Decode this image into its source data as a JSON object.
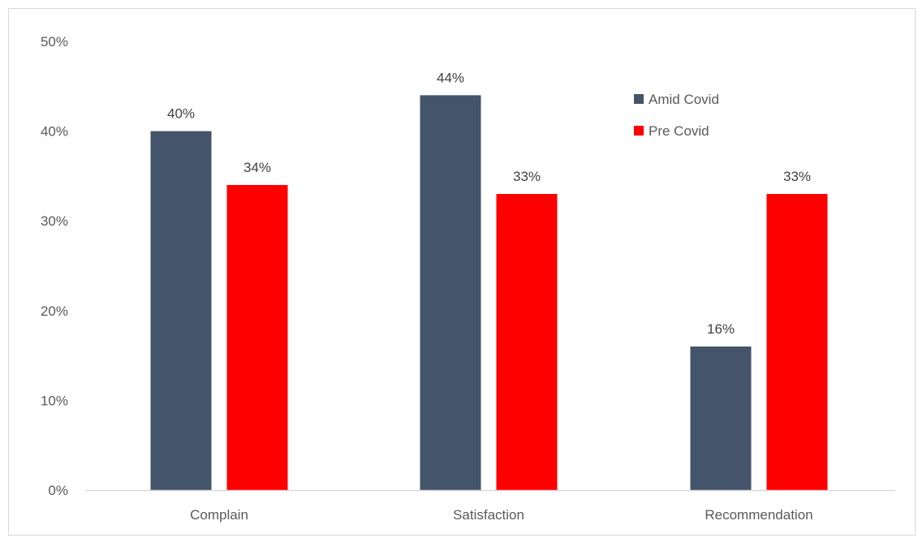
{
  "chart_data": {
    "type": "bar",
    "categories": [
      "Complain",
      "Satisfaction",
      "Recommendation"
    ],
    "series": [
      {
        "name": "Amid Covid",
        "values": [
          40,
          44,
          16
        ],
        "color": "#44546a"
      },
      {
        "name": "Pre Covid",
        "values": [
          34,
          33,
          33
        ],
        "color": "#ff0000"
      }
    ],
    "data_labels": [
      [
        "40%",
        "44%",
        "16%"
      ],
      [
        "34%",
        "33%",
        "33%"
      ]
    ],
    "ylim": [
      0,
      50
    ],
    "yticks": [
      0,
      10,
      20,
      30,
      40,
      50
    ],
    "ytick_labels": [
      "0%",
      "10%",
      "20%",
      "30%",
      "40%",
      "50%"
    ],
    "grid": false,
    "legend_position": "top-right",
    "axis_color": "#d9d9d9",
    "text_color": "#595959",
    "label_color": "#404040"
  }
}
